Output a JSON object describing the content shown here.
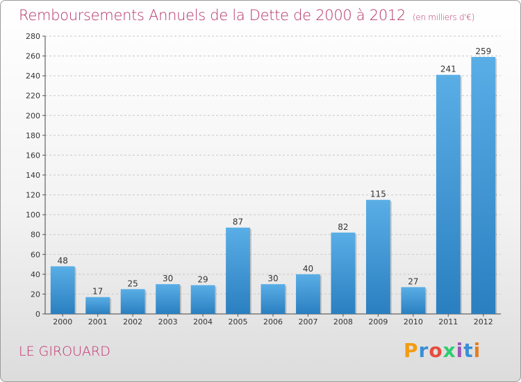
{
  "header": {
    "title": "Remboursements Annuels de la Dette de 2000 à 2012",
    "unit": "(en milliers d'€)"
  },
  "footer": {
    "commune": "LE GIROUARD",
    "logo": "Proxiti"
  },
  "colors": {
    "bar_light": "#5aaee6",
    "bar_dark": "#2a7fc0",
    "title": "#b5346a"
  },
  "chart_data": {
    "type": "bar",
    "title": "Remboursements Annuels de la Dette de 2000 à 2012",
    "subtitle": "(en milliers d'€)",
    "xlabel": "",
    "ylabel": "",
    "categories": [
      "2000",
      "2001",
      "2002",
      "2003",
      "2004",
      "2005",
      "2006",
      "2007",
      "2008",
      "2009",
      "2010",
      "2011",
      "2012"
    ],
    "values": [
      48,
      17,
      25,
      30,
      29,
      87,
      30,
      40,
      82,
      115,
      27,
      241,
      259
    ],
    "ylim": [
      0,
      280
    ],
    "yticks": [
      0,
      20,
      40,
      60,
      80,
      100,
      120,
      140,
      160,
      180,
      200,
      220,
      240,
      260,
      280
    ],
    "grid": true,
    "legend": "none"
  }
}
